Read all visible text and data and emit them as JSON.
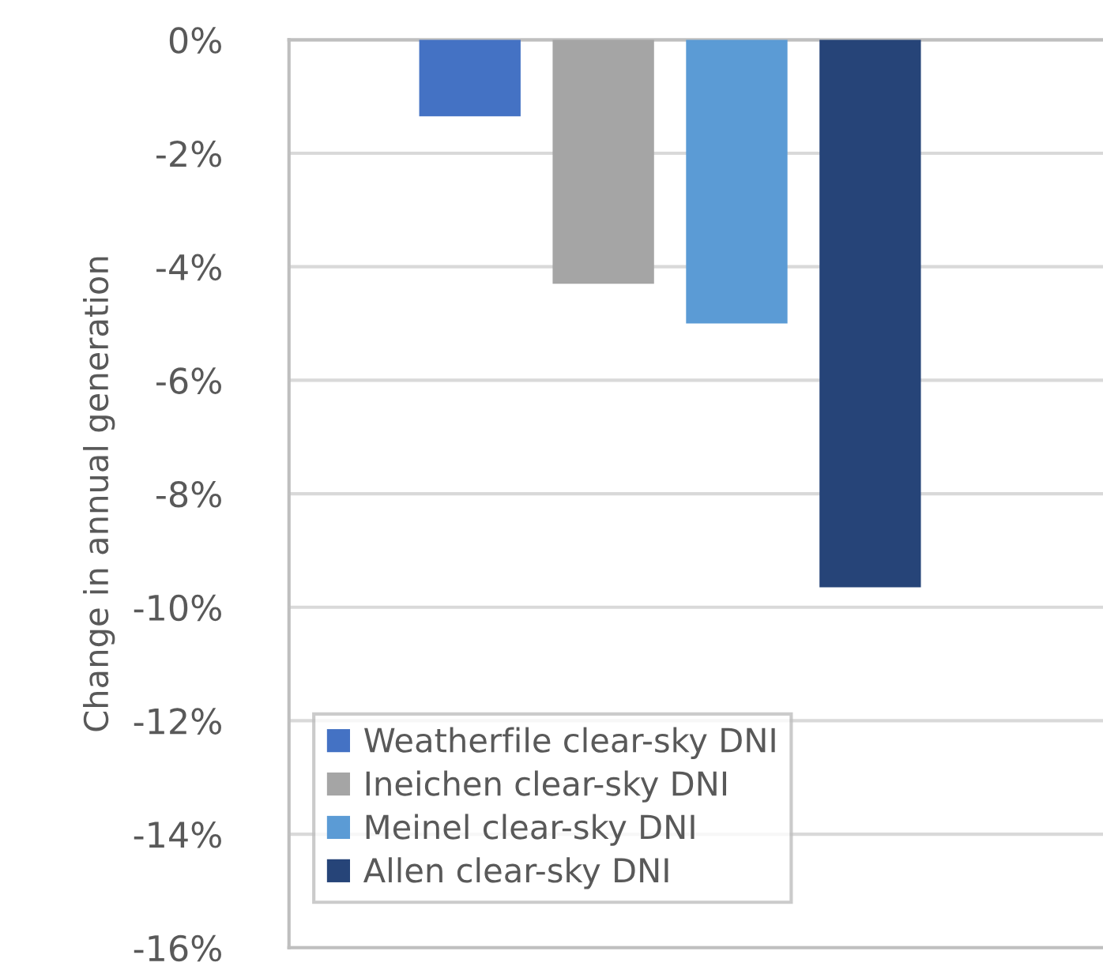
{
  "chart_data": {
    "type": "bar",
    "categories": [
      null
    ],
    "ylabel": "Change in annual generation",
    "series": [
      {
        "name": "Weatherfile clear-sky DNI",
        "color": "#4472c4",
        "values": [
          -1.35
        ]
      },
      {
        "name": "Ineichen clear-sky DNI",
        "color": "#a5a5a5",
        "values": [
          -4.3
        ]
      },
      {
        "name": "Meinel clear-sky DNI",
        "color": "#5b9bd5",
        "values": [
          -5.0
        ]
      },
      {
        "name": "Allen clear-sky DNI",
        "color": "#264478",
        "values": [
          -9.65
        ]
      }
    ],
    "ylim": [
      -16,
      0
    ],
    "yticks": [
      {
        "value": 0,
        "label": "0%"
      },
      {
        "value": -2,
        "label": "-2%"
      },
      {
        "value": -4,
        "label": "-4%"
      },
      {
        "value": -6,
        "label": "-6%"
      },
      {
        "value": -8,
        "label": "-8%"
      },
      {
        "value": -10,
        "label": "-10%"
      },
      {
        "value": -12,
        "label": "-12%"
      },
      {
        "value": -14,
        "label": "-14%"
      },
      {
        "value": -16,
        "label": "-16%"
      }
    ],
    "grid": "y",
    "legend": "bottom left"
  }
}
